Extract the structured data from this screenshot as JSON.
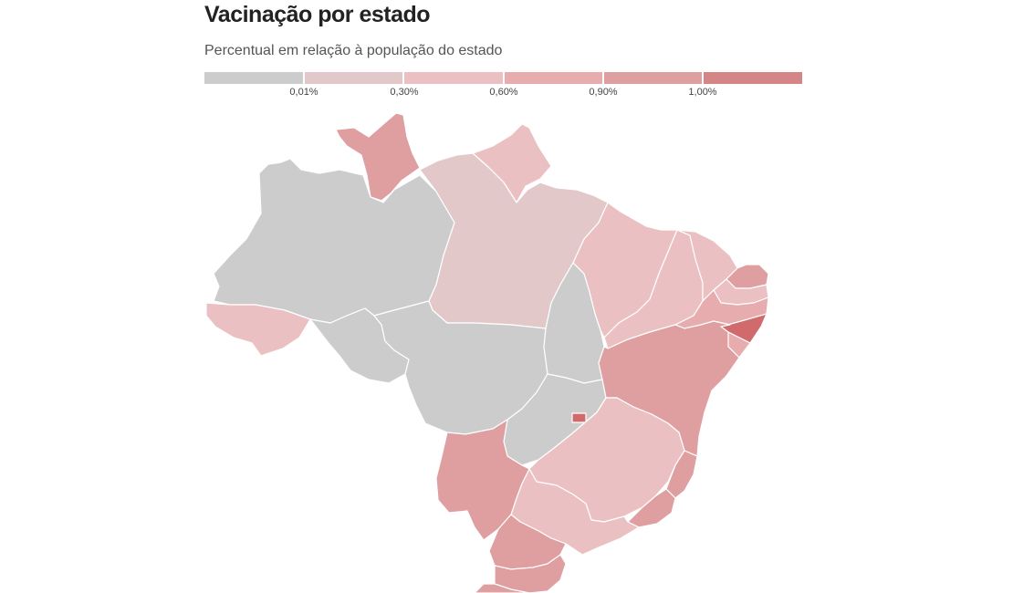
{
  "header": {
    "title": "Vacinação por estado",
    "subtitle": "Percentual em relação à população do estado"
  },
  "legend": {
    "colors": [
      "#cccccc",
      "#e3c8ca",
      "#ebc0c2",
      "#e6acae",
      "#df9e9f",
      "#d68587"
    ],
    "ticks": [
      "0,01%",
      "0,30%",
      "0,60%",
      "0,90%",
      "1,00%"
    ]
  },
  "map": {
    "states": [
      {
        "name": "RR",
        "color": "#df9e9f"
      },
      {
        "name": "AP",
        "color": "#ebc0c2"
      },
      {
        "name": "AM",
        "color": "#cccccc"
      },
      {
        "name": "PA",
        "color": "#e3c8ca"
      },
      {
        "name": "AC",
        "color": "#ebc0c2"
      },
      {
        "name": "RO",
        "color": "#cccccc"
      },
      {
        "name": "MT",
        "color": "#cccccc"
      },
      {
        "name": "TO",
        "color": "#cccccc"
      },
      {
        "name": "GO",
        "color": "#cccccc"
      },
      {
        "name": "DF",
        "color": "#d06a6c"
      },
      {
        "name": "MA",
        "color": "#ebc0c2"
      },
      {
        "name": "PI",
        "color": "#ebc0c2"
      },
      {
        "name": "CE",
        "color": "#ebc0c2"
      },
      {
        "name": "RN",
        "color": "#df9e9f"
      },
      {
        "name": "PB",
        "color": "#ebc0c2"
      },
      {
        "name": "PE",
        "color": "#e6acae"
      },
      {
        "name": "AL",
        "color": "#d06a6c"
      },
      {
        "name": "SE",
        "color": "#e6acae"
      },
      {
        "name": "BA",
        "color": "#df9e9f"
      },
      {
        "name": "MG",
        "color": "#ebc0c2"
      },
      {
        "name": "ES",
        "color": "#df9e9f"
      },
      {
        "name": "RJ",
        "color": "#df9e9f"
      },
      {
        "name": "SP",
        "color": "#ebc0c2"
      },
      {
        "name": "MS",
        "color": "#df9e9f"
      },
      {
        "name": "PR",
        "color": "#df9e9f"
      },
      {
        "name": "SC",
        "color": "#df9e9f"
      },
      {
        "name": "RS",
        "color": "#df9e9f"
      }
    ]
  }
}
